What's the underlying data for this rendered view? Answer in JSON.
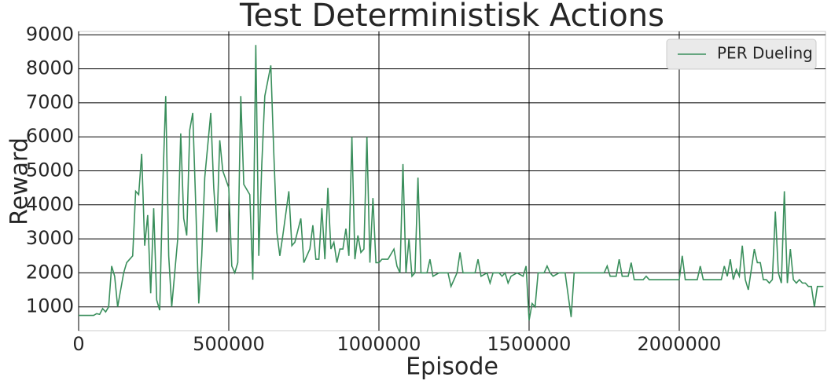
{
  "chart_data": {
    "type": "line",
    "title": "Test Deterministisk Actions",
    "x_label": "Episode",
    "y_label": "Reward",
    "xlim": [
      0,
      2487000
    ],
    "ylim": [
      300,
      9100
    ],
    "xticks": [
      0,
      500000,
      1000000,
      1500000,
      2000000
    ],
    "yticks": [
      1000,
      2000,
      3000,
      4000,
      5000,
      6000,
      7000,
      8000,
      9000
    ],
    "grid": true,
    "legend": "upper right",
    "x": [
      0,
      50000,
      60000,
      70000,
      80000,
      90000,
      100000,
      110000,
      120000,
      130000,
      140000,
      150000,
      160000,
      170000,
      180000,
      190000,
      200000,
      210000,
      220000,
      230000,
      240000,
      250000,
      260000,
      270000,
      280000,
      290000,
      300000,
      310000,
      320000,
      330000,
      340000,
      350000,
      360000,
      370000,
      380000,
      390000,
      400000,
      410000,
      420000,
      440000,
      450000,
      460000,
      470000,
      480000,
      500000,
      510000,
      520000,
      530000,
      540000,
      550000,
      570000,
      580000,
      590000,
      600000,
      610000,
      620000,
      640000,
      650000,
      660000,
      670000,
      680000,
      700000,
      710000,
      720000,
      740000,
      750000,
      760000,
      770000,
      780000,
      790000,
      800000,
      810000,
      820000,
      830000,
      840000,
      850000,
      860000,
      870000,
      880000,
      890000,
      900000,
      910000,
      920000,
      930000,
      940000,
      950000,
      960000,
      970000,
      980000,
      990000,
      1000000,
      1010000,
      1030000,
      1050000,
      1060000,
      1070000,
      1080000,
      1090000,
      1100000,
      1110000,
      1120000,
      1130000,
      1140000,
      1160000,
      1170000,
      1180000,
      1200000,
      1230000,
      1240000,
      1260000,
      1270000,
      1280000,
      1320000,
      1330000,
      1340000,
      1360000,
      1370000,
      1380000,
      1400000,
      1410000,
      1420000,
      1430000,
      1440000,
      1460000,
      1480000,
      1490000,
      1500000,
      1510000,
      1520000,
      1530000,
      1550000,
      1560000,
      1570000,
      1580000,
      1600000,
      1620000,
      1640000,
      1650000,
      1700000,
      1750000,
      1760000,
      1770000,
      1790000,
      1800000,
      1810000,
      1830000,
      1840000,
      1850000,
      1880000,
      1890000,
      1900000,
      1950000,
      2000000,
      2010000,
      2020000,
      2060000,
      2070000,
      2080000,
      2140000,
      2150000,
      2160000,
      2170000,
      2180000,
      2190000,
      2200000,
      2210000,
      2220000,
      2230000,
      2250000,
      2260000,
      2270000,
      2280000,
      2290000,
      2300000,
      2310000,
      2320000,
      2330000,
      2340000,
      2350000,
      2360000,
      2370000,
      2380000,
      2390000,
      2400000,
      2410000,
      2420000,
      2430000,
      2440000,
      2450000,
      2460000,
      2480000
    ],
    "series": [
      {
        "name": "PER Dueling",
        "color": "#3a8f5c",
        "values": [
          750,
          750,
          800,
          780,
          950,
          850,
          1000,
          2200,
          1900,
          1000,
          1500,
          2000,
          2300,
          2400,
          2500,
          4400,
          4300,
          5500,
          2800,
          3700,
          1400,
          3900,
          1200,
          900,
          4500,
          7200,
          2500,
          1000,
          2000,
          3000,
          6100,
          3600,
          3100,
          6200,
          6700,
          4000,
          1100,
          2500,
          4800,
          6700,
          4500,
          3200,
          5900,
          5000,
          4500,
          2200,
          2000,
          2300,
          7200,
          4600,
          4300,
          1800,
          8700,
          2500,
          5200,
          7200,
          8100,
          5500,
          3200,
          2500,
          3100,
          4400,
          2800,
          2900,
          3600,
          2300,
          2500,
          2700,
          3400,
          2400,
          2400,
          3900,
          2400,
          4500,
          2700,
          2900,
          2300,
          2700,
          2700,
          3300,
          2500,
          6000,
          2400,
          3100,
          2600,
          2700,
          6000,
          2300,
          4200,
          2300,
          2300,
          2400,
          2400,
          2700,
          2200,
          2000,
          5200,
          2000,
          3000,
          1900,
          2000,
          4800,
          2000,
          2000,
          2400,
          1900,
          2000,
          2000,
          1600,
          2000,
          2600,
          2000,
          2000,
          2400,
          1900,
          2000,
          1700,
          2000,
          2000,
          1900,
          2000,
          1700,
          1900,
          2000,
          1900,
          2200,
          600,
          1100,
          1000,
          2000,
          2000,
          2200,
          2000,
          1900,
          2000,
          2000,
          700,
          2000,
          2000,
          2000,
          2200,
          1900,
          1900,
          2400,
          1900,
          1900,
          2300,
          1800,
          1800,
          1900,
          1800,
          1800,
          1800,
          2500,
          1800,
          1800,
          2200,
          1800,
          1800,
          2200,
          1900,
          2400,
          1800,
          2100,
          1900,
          2800,
          1800,
          1500,
          2700,
          2300,
          2300,
          1800,
          1800,
          1700,
          1800,
          3800,
          2000,
          1700,
          4400,
          1700,
          2700,
          1800,
          1700,
          1800,
          1700,
          1700,
          1600,
          1600,
          1000,
          1600,
          1600
        ]
      }
    ]
  }
}
